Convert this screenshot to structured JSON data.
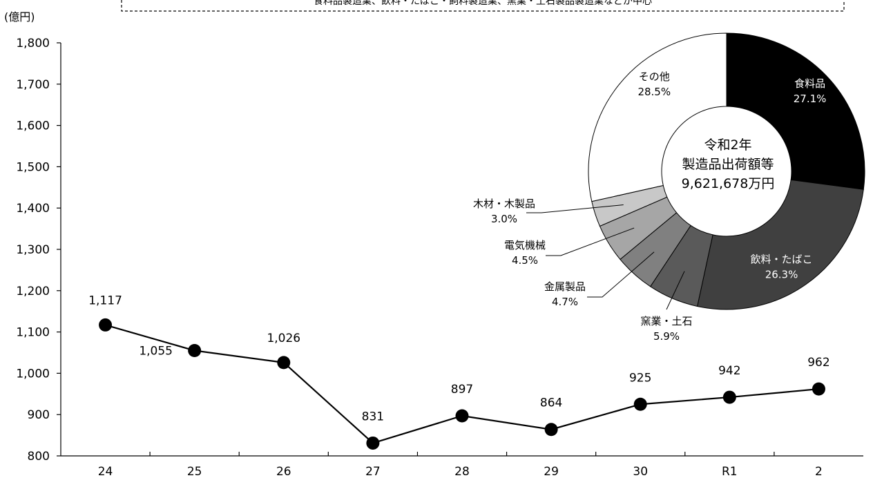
{
  "header": {
    "unit_label": "(億円)",
    "banner_text": "食料品製造業、飲料・たばこ・飼料製造業、窯業・土石製品製造業などが中心"
  },
  "colors": {
    "line": "#000000",
    "marker": "#000000",
    "axis": "#000000"
  },
  "chart_data": [
    {
      "type": "line",
      "title": "",
      "xlabel": "",
      "ylabel": "(億円)",
      "categories": [
        "24",
        "25",
        "26",
        "27",
        "28",
        "29",
        "30",
        "R1",
        "2"
      ],
      "series": [
        {
          "values": [
            1117,
            1055,
            1026,
            831,
            897,
            864,
            925,
            942,
            962
          ]
        }
      ],
      "data_labels": [
        "1,117",
        "1,055",
        "1,026",
        "831",
        "897",
        "864",
        "925",
        "942",
        "962"
      ],
      "ylim": [
        800,
        1800
      ],
      "yticks": [
        800,
        900,
        1000,
        1100,
        1200,
        1300,
        1400,
        1500,
        1600,
        1700,
        1800
      ],
      "ytick_labels": [
        "800",
        "900",
        "1,000",
        "1,100",
        "1,200",
        "1,300",
        "1,400",
        "1,500",
        "1,600",
        "1,700",
        "1,800"
      ],
      "grid": false,
      "legend": "none"
    },
    {
      "type": "pie",
      "title": "",
      "center_text": [
        "令和2年",
        "製造品出荷額等",
        "9,621,678万円"
      ],
      "slices": [
        {
          "name": "食料品",
          "value": 27.1,
          "label": "27.1%",
          "color": "#000000",
          "text_color": "#ffffff"
        },
        {
          "name": "飲料・たばこ",
          "value": 26.3,
          "label": "26.3%",
          "color": "#404040",
          "text_color": "#ffffff"
        },
        {
          "name": "窯業・土石",
          "value": 5.9,
          "label": "5.9%",
          "color": "#5a5a5a",
          "text_color": "#000000"
        },
        {
          "name": "金属製品",
          "value": 4.7,
          "label": "4.7%",
          "color": "#808080",
          "text_color": "#000000"
        },
        {
          "name": "電気機械",
          "value": 4.5,
          "label": "4.5%",
          "color": "#a6a6a6",
          "text_color": "#000000"
        },
        {
          "name": "木材・木製品",
          "value": 3.0,
          "label": "3.0%",
          "color": "#c8c8c8",
          "text_color": "#000000"
        },
        {
          "name": "その他",
          "value": 28.5,
          "label": "28.5%",
          "color": "#ffffff",
          "text_color": "#000000"
        }
      ]
    }
  ]
}
